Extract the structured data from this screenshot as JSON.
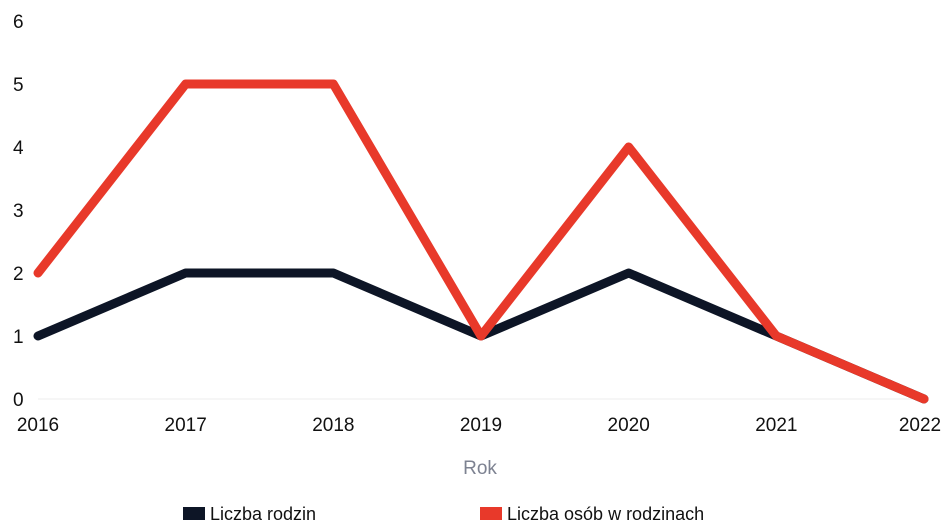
{
  "chart_data": {
    "type": "line",
    "categories": [
      "2016",
      "2017",
      "2018",
      "2019",
      "2020",
      "2021",
      "2022"
    ],
    "series": [
      {
        "name": "Liczba rodzin",
        "values": [
          1,
          2,
          2,
          1,
          2,
          1,
          0
        ],
        "color": "#0d1526"
      },
      {
        "name": "Liczba osób w rodzinach",
        "values": [
          2,
          5,
          5,
          1,
          4,
          1,
          0
        ],
        "color": "#e8392a"
      }
    ],
    "xlabel": "Rok",
    "ylabel": "",
    "ylim": [
      0,
      6
    ],
    "yticks": [
      "0",
      "1",
      "2",
      "3",
      "4",
      "5",
      "6"
    ],
    "grid": false,
    "legend": "bottom-center"
  }
}
